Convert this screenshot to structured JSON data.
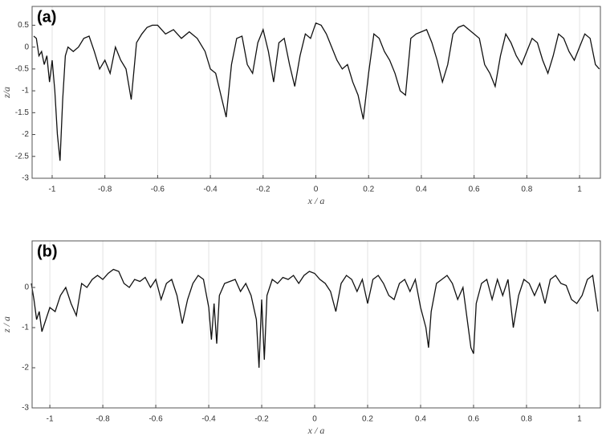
{
  "chart_data": [
    {
      "type": "line",
      "label": "(a)",
      "xlabel": "x / a",
      "ylabel": "z/a",
      "color": "#111111",
      "grid": "x",
      "xlim": [
        -1.076,
        1.079
      ],
      "ylim": [
        -3,
        0.93
      ],
      "xticks": [
        -1,
        -0.8,
        -0.6,
        -0.4,
        -0.2,
        0,
        0.2,
        0.4,
        0.6,
        0.8,
        1
      ],
      "yticks": [
        0.5,
        0,
        -0.5,
        -1,
        -1.5,
        -2,
        -2.5,
        -3
      ],
      "x": [
        -1.07,
        -1.06,
        -1.05,
        -1.04,
        -1.03,
        -1.02,
        -1.01,
        -1.0,
        -0.99,
        -0.98,
        -0.97,
        -0.96,
        -0.95,
        -0.94,
        -0.92,
        -0.9,
        -0.88,
        -0.86,
        -0.84,
        -0.82,
        -0.8,
        -0.78,
        -0.76,
        -0.74,
        -0.72,
        -0.7,
        -0.68,
        -0.66,
        -0.64,
        -0.62,
        -0.6,
        -0.57,
        -0.54,
        -0.51,
        -0.48,
        -0.45,
        -0.42,
        -0.4,
        -0.38,
        -0.36,
        -0.34,
        -0.32,
        -0.3,
        -0.28,
        -0.26,
        -0.24,
        -0.22,
        -0.2,
        -0.18,
        -0.16,
        -0.14,
        -0.12,
        -0.1,
        -0.08,
        -0.06,
        -0.04,
        -0.02,
        0.0,
        0.02,
        0.04,
        0.06,
        0.08,
        0.1,
        0.12,
        0.14,
        0.16,
        0.18,
        0.2,
        0.22,
        0.24,
        0.26,
        0.28,
        0.3,
        0.32,
        0.34,
        0.36,
        0.38,
        0.4,
        0.42,
        0.44,
        0.46,
        0.48,
        0.5,
        0.52,
        0.54,
        0.56,
        0.58,
        0.6,
        0.62,
        0.64,
        0.66,
        0.68,
        0.7,
        0.72,
        0.74,
        0.76,
        0.78,
        0.8,
        0.82,
        0.84,
        0.86,
        0.88,
        0.9,
        0.92,
        0.94,
        0.96,
        0.98,
        1.0,
        1.02,
        1.04,
        1.06,
        1.075
      ],
      "values": [
        0.25,
        0.2,
        -0.2,
        -0.1,
        -0.4,
        -0.2,
        -0.8,
        -0.3,
        -1.0,
        -2.0,
        -2.6,
        -1.2,
        -0.2,
        0.0,
        -0.1,
        0.0,
        0.2,
        0.25,
        -0.1,
        -0.5,
        -0.3,
        -0.6,
        0.0,
        -0.3,
        -0.5,
        -1.2,
        0.1,
        0.3,
        0.45,
        0.5,
        0.5,
        0.3,
        0.4,
        0.2,
        0.35,
        0.2,
        -0.1,
        -0.5,
        -0.6,
        -1.1,
        -1.6,
        -0.4,
        0.2,
        0.25,
        -0.4,
        -0.6,
        0.1,
        0.4,
        -0.1,
        -0.8,
        0.1,
        0.2,
        -0.4,
        -0.9,
        -0.2,
        0.3,
        0.2,
        0.55,
        0.5,
        0.3,
        0.0,
        -0.3,
        -0.5,
        -0.4,
        -0.8,
        -1.1,
        -1.65,
        -0.6,
        0.3,
        0.2,
        -0.1,
        -0.3,
        -0.6,
        -1.0,
        -1.1,
        0.2,
        0.3,
        0.35,
        0.4,
        0.1,
        -0.3,
        -0.8,
        -0.4,
        0.3,
        0.45,
        0.5,
        0.4,
        0.3,
        0.2,
        -0.4,
        -0.6,
        -0.9,
        -0.2,
        0.3,
        0.1,
        -0.2,
        -0.4,
        -0.1,
        0.2,
        0.1,
        -0.3,
        -0.6,
        -0.2,
        0.3,
        0.2,
        -0.1,
        -0.3,
        0.0,
        0.3,
        0.2,
        -0.4,
        -0.5
      ]
    },
    {
      "type": "line",
      "label": "(b)",
      "xlabel": "x / a",
      "ylabel": "z / a",
      "color": "#111111",
      "grid": "x",
      "xlim": [
        -1.067,
        1.079
      ],
      "ylim": [
        -3,
        1.16
      ],
      "xticks": [
        -1,
        -0.8,
        -0.6,
        -0.4,
        -0.2,
        0,
        0.2,
        0.4,
        0.6,
        0.8,
        1
      ],
      "yticks": [
        0,
        -1,
        -2,
        -3
      ],
      "x": [
        -1.07,
        -1.06,
        -1.05,
        -1.04,
        -1.03,
        -1.02,
        -1.0,
        -0.98,
        -0.96,
        -0.94,
        -0.92,
        -0.9,
        -0.88,
        -0.86,
        -0.84,
        -0.82,
        -0.8,
        -0.78,
        -0.76,
        -0.74,
        -0.72,
        -0.7,
        -0.68,
        -0.66,
        -0.64,
        -0.62,
        -0.6,
        -0.58,
        -0.56,
        -0.54,
        -0.52,
        -0.5,
        -0.48,
        -0.46,
        -0.44,
        -0.42,
        -0.4,
        -0.39,
        -0.38,
        -0.37,
        -0.36,
        -0.34,
        -0.32,
        -0.3,
        -0.28,
        -0.26,
        -0.24,
        -0.22,
        -0.21,
        -0.2,
        -0.19,
        -0.18,
        -0.16,
        -0.14,
        -0.12,
        -0.1,
        -0.08,
        -0.06,
        -0.04,
        -0.02,
        0.0,
        0.02,
        0.04,
        0.06,
        0.08,
        0.1,
        0.12,
        0.14,
        0.16,
        0.18,
        0.2,
        0.22,
        0.24,
        0.26,
        0.28,
        0.3,
        0.32,
        0.34,
        0.36,
        0.38,
        0.4,
        0.42,
        0.43,
        0.44,
        0.46,
        0.48,
        0.5,
        0.52,
        0.54,
        0.56,
        0.58,
        0.59,
        0.6,
        0.61,
        0.63,
        0.65,
        0.67,
        0.69,
        0.71,
        0.73,
        0.75,
        0.77,
        0.79,
        0.81,
        0.83,
        0.85,
        0.87,
        0.89,
        0.91,
        0.93,
        0.95,
        0.97,
        0.99,
        1.01,
        1.03,
        1.05,
        1.07
      ],
      "values": [
        0.1,
        -0.3,
        -0.8,
        -0.6,
        -1.1,
        -0.9,
        -0.5,
        -0.6,
        -0.2,
        0.0,
        -0.4,
        -0.7,
        0.1,
        0.0,
        0.2,
        0.3,
        0.2,
        0.35,
        0.45,
        0.4,
        0.1,
        0.0,
        0.2,
        0.15,
        0.25,
        0.0,
        0.2,
        -0.3,
        0.1,
        0.2,
        -0.2,
        -0.9,
        -0.3,
        0.1,
        0.3,
        0.2,
        -0.5,
        -1.3,
        -0.4,
        -1.4,
        -0.2,
        0.1,
        0.15,
        0.2,
        -0.1,
        0.1,
        -0.2,
        -0.8,
        -2.0,
        -0.3,
        -1.8,
        -0.2,
        0.2,
        0.1,
        0.25,
        0.2,
        0.3,
        0.1,
        0.3,
        0.4,
        0.35,
        0.2,
        0.1,
        -0.1,
        -0.6,
        0.1,
        0.3,
        0.2,
        -0.1,
        0.2,
        -0.4,
        0.2,
        0.3,
        0.1,
        -0.2,
        -0.3,
        0.1,
        0.2,
        -0.1,
        0.2,
        -0.5,
        -1.0,
        -1.5,
        -0.6,
        0.1,
        0.2,
        0.3,
        0.1,
        -0.3,
        0.0,
        -1.0,
        -1.5,
        -1.65,
        -0.4,
        0.1,
        0.2,
        -0.3,
        0.2,
        -0.2,
        0.2,
        -1.0,
        -0.2,
        0.2,
        0.1,
        -0.2,
        0.1,
        -0.4,
        0.2,
        0.3,
        0.1,
        0.05,
        -0.3,
        -0.4,
        -0.2,
        0.2,
        0.3,
        -0.6
      ]
    }
  ]
}
